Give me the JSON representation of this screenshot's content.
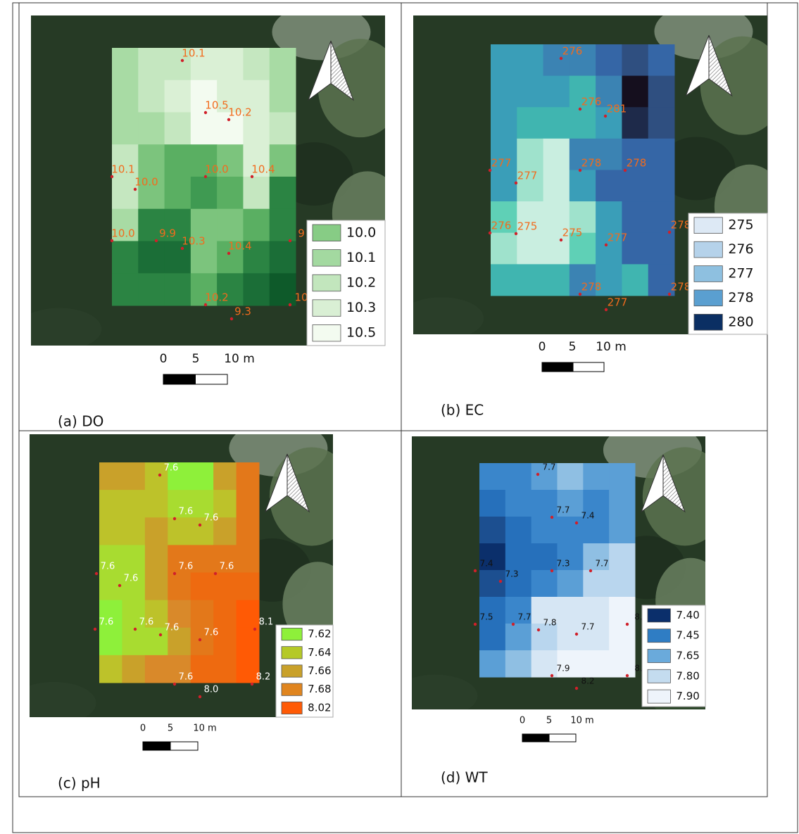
{
  "panels": [
    {
      "caption": "(a)  DO",
      "point_labels": [
        "10.1",
        "10.5",
        "10.2",
        "10.1",
        "10.0",
        "10.0",
        "10.4",
        "10.0",
        "9.9",
        "10.3",
        "10.4",
        "9",
        "10.2",
        "9.3",
        "10"
      ],
      "legend": [
        {
          "label": "10.0",
          "color": "#87cc85"
        },
        {
          "label": "10.1",
          "color": "#a3d9a0"
        },
        {
          "label": "10.2",
          "color": "#c2e6bd"
        },
        {
          "label": "10.3",
          "color": "#d9efd4"
        },
        {
          "label": "10.5",
          "color": "#f3fbf0"
        }
      ],
      "scale_labels": [
        "0",
        "5",
        "10 m"
      ]
    },
    {
      "caption": "(b)  EC",
      "point_labels": [
        "276",
        "276",
        "281",
        "277",
        "277",
        "278",
        "278",
        "276",
        "275",
        "275",
        "277",
        "278",
        "278",
        "277",
        "278"
      ],
      "legend": [
        {
          "label": "275",
          "color": "#dde9f5"
        },
        {
          "label": "276",
          "color": "#b5d2ea"
        },
        {
          "label": "277",
          "color": "#8ec0e0"
        },
        {
          "label": "278",
          "color": "#5a9fd0"
        },
        {
          "label": "280",
          "color": "#0b2f63"
        }
      ],
      "scale_labels": [
        "0",
        "5",
        "10 m"
      ]
    },
    {
      "caption": "(c)  pH",
      "point_labels": [
        "7.6",
        "7.6",
        "7.6",
        "7.6",
        "7.6",
        "7.6",
        "7.6",
        "7.6",
        "7.6",
        "7.6",
        "7.6",
        "8.1",
        "7.6",
        "8.0",
        "8.2"
      ],
      "legend": [
        {
          "label": "7.62",
          "color": "#8ef03a"
        },
        {
          "label": "7.64",
          "color": "#b5c927"
        },
        {
          "label": "7.66",
          "color": "#c9a12a"
        },
        {
          "label": "7.68",
          "color": "#e0851f"
        },
        {
          "label": "8.02",
          "color": "#ff5a05"
        }
      ],
      "scale_labels": [
        "0",
        "5",
        "10 m"
      ]
    },
    {
      "caption": "(d)  WT",
      "point_labels": [
        "7.7",
        "7.7",
        "7.4",
        "7.4",
        "7.3",
        "7.3",
        "7.7",
        "7.5",
        "7.7",
        "7.8",
        "7.7",
        "8.",
        "7.9",
        "8.2",
        "8."
      ],
      "legend": [
        {
          "label": "7.40",
          "color": "#0b2f6b"
        },
        {
          "label": "7.45",
          "color": "#2f7dc4"
        },
        {
          "label": "7.65",
          "color": "#6aaadb"
        },
        {
          "label": "7.80",
          "color": "#c4dcef"
        },
        {
          "label": "7.90",
          "color": "#eef4fb"
        }
      ],
      "scale_labels": [
        "0",
        "5",
        "10 m"
      ]
    }
  ]
}
